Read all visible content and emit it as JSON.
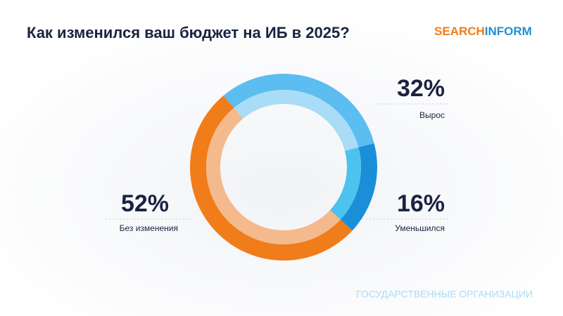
{
  "chart_data": {
    "type": "donut",
    "title": "Как изменился ваш бюджет на ИБ в 2025?",
    "logo": [
      "SEARCH",
      "INFORM"
    ],
    "footer": "ГОСУДАРСТВЕННЫЕ ОРГАНИЗАЦИИ",
    "categories": [
      "Вырос",
      "Уменьшился",
      "Без изменения"
    ],
    "values": [
      32,
      16,
      52
    ],
    "value_labels": [
      "32%",
      "16%",
      "52%"
    ],
    "colors": [
      "#5bbdf0",
      "#1a8fd8",
      "#f07d1a"
    ],
    "inner_colors": [
      "#a9dcf6",
      "#4cc2ee",
      "#f4b98c"
    ]
  }
}
